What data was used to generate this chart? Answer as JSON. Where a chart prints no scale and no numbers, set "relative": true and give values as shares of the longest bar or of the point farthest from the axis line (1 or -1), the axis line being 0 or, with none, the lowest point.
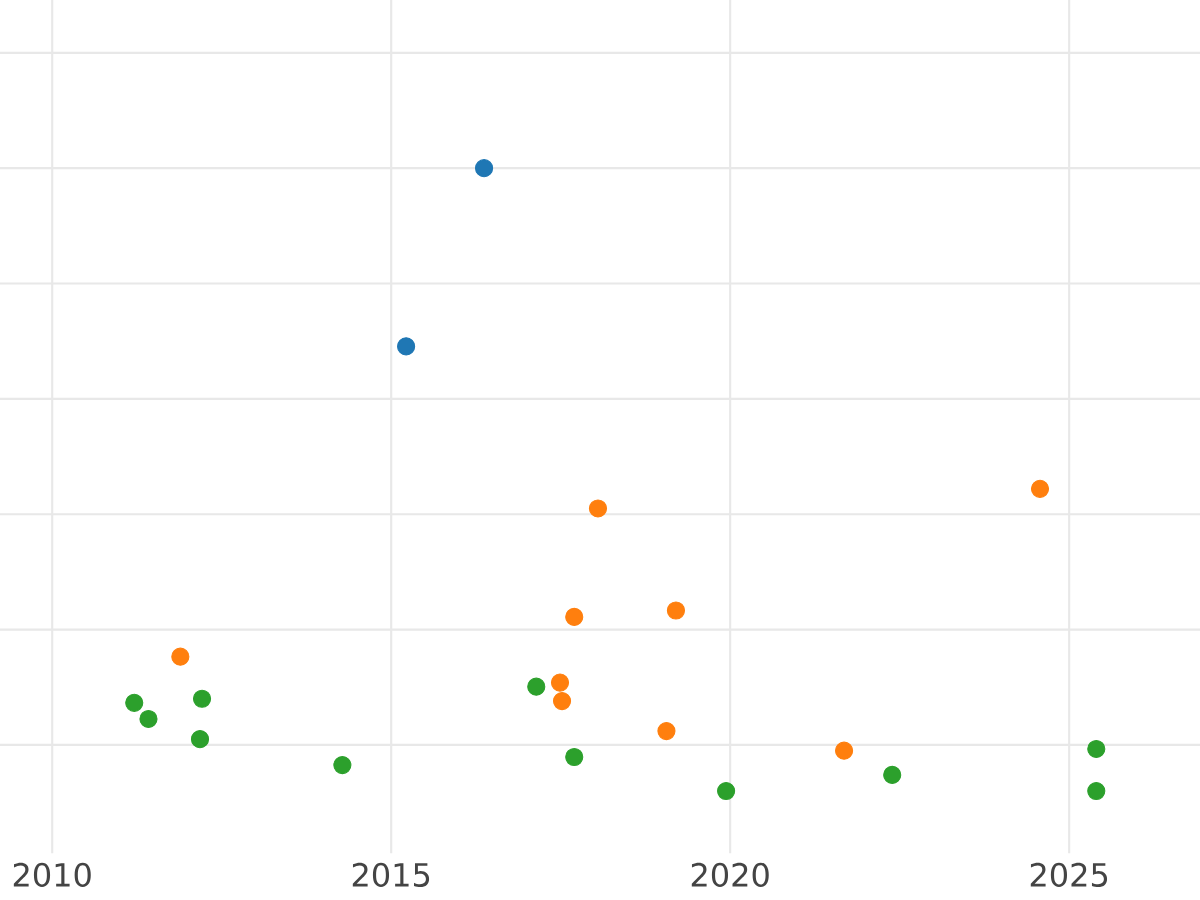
{
  "chart_data": {
    "type": "scatter",
    "relative": true,
    "marker": "circle",
    "grid": true,
    "tick_labels": "x",
    "xlim": [
      2009.23,
      2026.93
    ],
    "xticks": [
      2010,
      2015,
      2020,
      2025
    ],
    "series": [
      {
        "color": "#1f77b4",
        "x": [
          2016.37,
          2015.22
        ],
        "values": [
          1.0,
          0.691
        ]
      },
      {
        "color": "#ff7f0e",
        "x": [
          2011.89,
          2018.05,
          2017.7,
          2019.2,
          2017.49,
          2017.52,
          2019.06,
          2021.68,
          2024.57
        ],
        "values": [
          0.153,
          0.41,
          0.222,
          0.233,
          0.108,
          0.076,
          0.024,
          -0.01,
          0.444
        ]
      },
      {
        "color": "#2ca02c",
        "x": [
          2011.21,
          2011.42,
          2012.21,
          2012.18,
          2014.28,
          2017.14,
          2017.7,
          2019.94,
          2022.39,
          2025.4,
          2025.4
        ],
        "values": [
          0.073,
          0.045,
          0.08,
          0.01,
          -0.035,
          0.101,
          -0.021,
          -0.08,
          -0.052,
          -0.007,
          -0.08
        ]
      }
    ]
  }
}
